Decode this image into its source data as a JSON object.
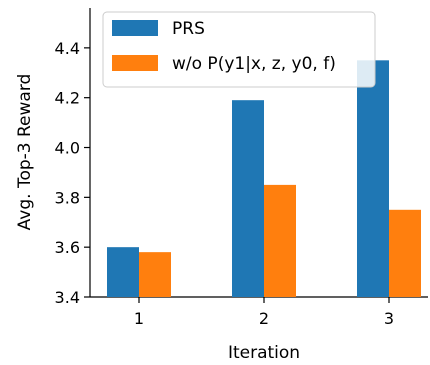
{
  "chart_data": {
    "type": "bar",
    "categories": [
      "1",
      "2",
      "3"
    ],
    "series": [
      {
        "name": "PRS",
        "values": [
          3.6,
          4.19,
          4.35
        ],
        "color": "#1f77b4"
      },
      {
        "name": "w/o P(y1|x, z, y0, f)",
        "values": [
          3.58,
          3.85,
          3.75
        ],
        "color": "#ff7f0e"
      }
    ],
    "xlabel": "Iteration",
    "ylabel": "Avg. Top-3 Reward",
    "ylim": [
      3.4,
      4.56
    ],
    "yticks": [
      "3.4",
      "3.6",
      "3.8",
      "4.0",
      "4.2",
      "4.4"
    ],
    "legend": {
      "placement": "upper-left"
    },
    "grid": false
  }
}
